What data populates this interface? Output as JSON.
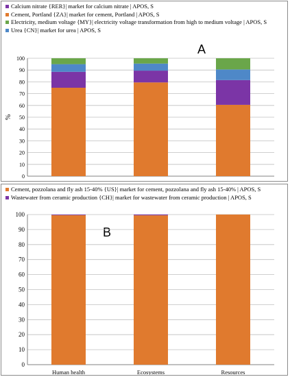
{
  "chart_data": [
    {
      "type": "bar",
      "stacked": true,
      "panel_label": "A",
      "categories": [
        "",
        "",
        ""
      ],
      "ylabel": "%",
      "ylim": [
        0,
        100
      ],
      "yticks": [
        "0",
        "10",
        "20",
        "30",
        "40",
        "50",
        "60",
        "70",
        "80",
        "90",
        "100"
      ],
      "grid": true,
      "legend_position": "top-left",
      "series": [
        {
          "name": "Cement, Portland {ZA}| market for cement, Portland | APOS, S",
          "color": "#E07A2E",
          "values": [
            75,
            79.5,
            60.5
          ]
        },
        {
          "name": "Calcium nitrate {RER}| market for calcium nitrate | APOS, S",
          "color": "#7B35A6",
          "values": [
            13.5,
            10,
            21
          ]
        },
        {
          "name": "Urea {CN}| market for urea | APOS, S",
          "color": "#4E88C8",
          "values": [
            6.5,
            6,
            9
          ]
        },
        {
          "name": "Electricity, medium voltage {MY}| electricity voltage transformation from high to medium voltage | APOS, S",
          "color": "#6AA64A",
          "values": [
            5,
            4.5,
            9.5
          ]
        }
      ],
      "legend_order": [
        "Calcium nitrate {RER}| market for calcium nitrate | APOS, S",
        "Cement, Portland {ZA}| market for cement, Portland | APOS, S",
        "Electricity, medium voltage {MY}| electricity voltage transformation from high to medium voltage | APOS, S",
        "Urea {CN}| market for urea | APOS, S"
      ]
    },
    {
      "type": "bar",
      "stacked": true,
      "panel_label": "B",
      "categories": [
        "Human health",
        "Ecosystems",
        "Resources"
      ],
      "ylabel": "",
      "ylim": [
        0,
        100
      ],
      "yticks": [
        "0",
        "10",
        "20",
        "30",
        "40",
        "50",
        "60",
        "70",
        "80",
        "90",
        "100"
      ],
      "grid": true,
      "legend_position": "top-left",
      "series": [
        {
          "name": "Cement, pozzolana and fly ash 15-40% {US}| market for cement, pozzolana and fly ash 15-40% | APOS, S",
          "color": "#E07A2E",
          "values": [
            99.6,
            99.5,
            100
          ]
        },
        {
          "name": "Wastewater from ceramic production {CH}| market for wastewater from ceramic production | APOS, S",
          "color": "#7B35A6",
          "values": [
            0.4,
            0.5,
            0
          ]
        }
      ],
      "legend_order": [
        "Cement, pozzolana and fly ash 15-40% {US}| market for cement, pozzolana and fly ash 15-40% | APOS, S",
        "Wastewater from ceramic production {CH}| market for wastewater from ceramic production | APOS, S"
      ]
    }
  ]
}
